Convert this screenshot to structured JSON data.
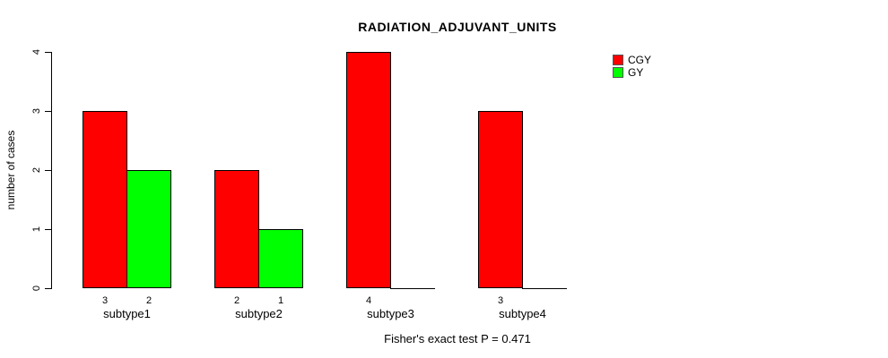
{
  "title": "RADIATION_ADJUVANT_UNITS",
  "y_axis_label": "number of cases",
  "footer": "Fisher's exact test P = 0.471",
  "legend": {
    "items": [
      {
        "label": "CGY",
        "color": "#ff0000"
      },
      {
        "label": "GY",
        "color": "#00ff00"
      }
    ]
  },
  "chart_data": {
    "type": "bar",
    "title": "RADIATION_ADJUVANT_UNITS",
    "categories": [
      "subtype1",
      "subtype2",
      "subtype3",
      "subtype4"
    ],
    "series": [
      {
        "name": "CGY",
        "color": "#ff0000",
        "values": [
          3,
          2,
          4,
          3
        ]
      },
      {
        "name": "GY",
        "color": "#00ff00",
        "values": [
          2,
          1,
          0,
          0
        ]
      }
    ],
    "bar_value_labels": [
      [
        "3",
        "2"
      ],
      [
        "2",
        "1"
      ],
      [
        "4",
        ""
      ],
      [
        "3",
        ""
      ]
    ],
    "xlabel": "",
    "ylabel": "number of cases",
    "ylim": [
      0,
      4
    ],
    "yticks": [
      0,
      1,
      2,
      3,
      4
    ],
    "grid": false,
    "legend_position": "top-right",
    "annotation": "Fisher's exact test P = 0.471",
    "bar_border_color": "#000000"
  }
}
